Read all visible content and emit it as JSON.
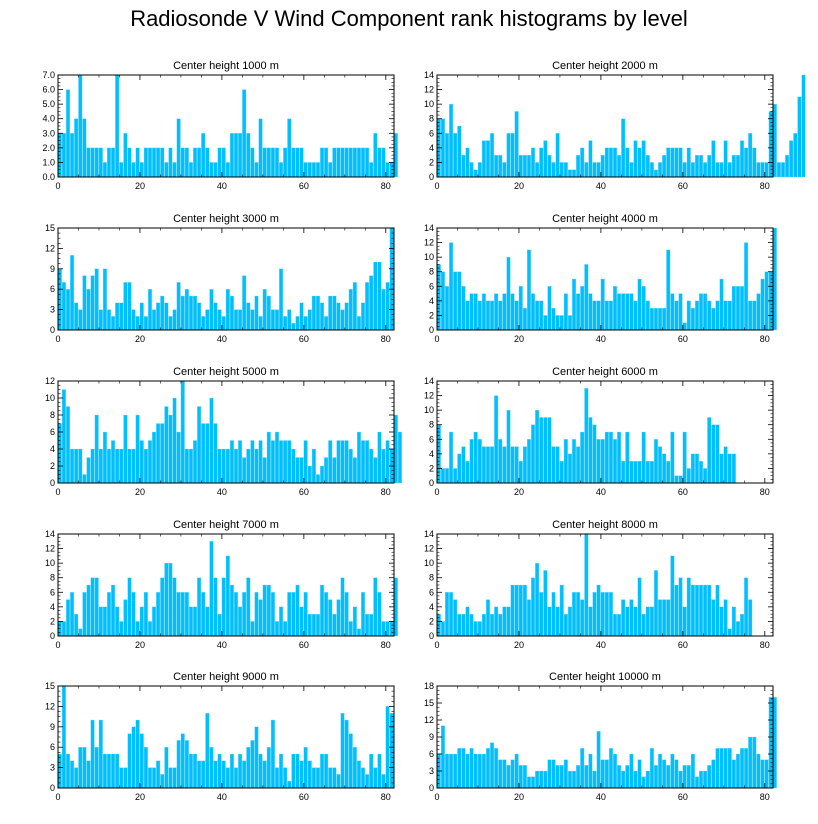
{
  "title": "Radiosonde V Wind Component rank histograms by level",
  "colors": {
    "bar": "#00bfff",
    "axis": "#000000"
  },
  "chart_data": [
    {
      "type": "bar",
      "title": "Center height 1000 m",
      "xlim": [
        0,
        82
      ],
      "ylim": [
        0,
        7
      ],
      "yticks": [
        "0.0",
        "1.0",
        "2.0",
        "3.0",
        "4.0",
        "5.0",
        "6.0",
        "7.0"
      ],
      "ytick_values": [
        0,
        1,
        2,
        3,
        4,
        5,
        6,
        7
      ],
      "xticks": [
        "0",
        "20",
        "40",
        "60",
        "80"
      ],
      "xtick_values": [
        0,
        20,
        40,
        60,
        80
      ],
      "values": [
        3,
        3,
        6,
        3,
        4,
        7,
        4,
        2,
        2,
        2,
        2,
        1,
        2,
        2,
        7,
        1,
        3,
        2,
        1,
        2,
        1,
        2,
        2,
        2,
        2,
        2,
        1,
        2,
        1,
        4,
        2,
        2,
        1,
        2,
        2,
        3,
        2,
        1,
        1,
        2,
        2,
        1,
        3,
        3,
        3,
        6,
        3,
        2,
        1,
        4,
        2,
        2,
        2,
        2,
        1,
        2,
        4,
        2,
        2,
        2,
        1,
        1,
        1,
        1,
        2,
        2,
        1,
        2,
        2,
        2,
        2,
        2,
        2,
        2,
        2,
        2,
        1,
        3,
        2,
        2,
        1,
        1,
        3
      ]
    },
    {
      "type": "bar",
      "title": "Center height 2000 m",
      "xlim": [
        0,
        82
      ],
      "ylim": [
        0,
        14
      ],
      "yticks": [
        "0",
        "2",
        "4",
        "6",
        "8",
        "10",
        "12",
        "14"
      ],
      "ytick_values": [
        0,
        2,
        4,
        6,
        8,
        10,
        12,
        14
      ],
      "xticks": [
        "0",
        "20",
        "40",
        "60",
        "80"
      ],
      "xtick_values": [
        0,
        20,
        40,
        60,
        80
      ],
      "values": [
        8,
        8,
        6,
        10,
        6,
        7,
        3,
        4,
        2,
        1,
        2,
        5,
        5,
        6,
        3,
        3,
        2,
        6,
        6,
        9,
        3,
        3,
        3,
        4,
        2,
        4,
        5,
        3,
        2,
        6,
        2,
        2,
        1,
        1,
        3,
        4,
        2,
        5,
        2,
        2,
        3,
        4,
        4,
        4,
        3,
        8,
        4,
        2,
        5,
        4,
        5,
        3,
        2,
        1,
        2,
        3,
        4,
        4,
        4,
        4,
        2,
        4,
        2,
        3,
        3,
        2,
        3,
        5,
        2,
        2,
        5,
        2,
        3,
        3,
        5,
        4,
        6,
        4,
        2,
        2,
        2,
        9,
        10,
        2,
        2,
        3,
        5,
        6,
        11,
        14
      ]
    },
    {
      "type": "bar",
      "title": "Center height 3000 m",
      "xlim": [
        0,
        82
      ],
      "ylim": [
        0,
        15
      ],
      "yticks": [
        "0",
        "3",
        "6",
        "9",
        "12",
        "15"
      ],
      "ytick_values": [
        0,
        3,
        6,
        9,
        12,
        15
      ],
      "xticks": [
        "0",
        "20",
        "40",
        "60",
        "80"
      ],
      "xtick_values": [
        0,
        20,
        40,
        60,
        80
      ],
      "values": [
        9,
        7,
        6,
        11,
        4,
        3,
        8,
        6,
        8,
        9,
        3,
        9,
        3,
        2,
        4,
        4,
        7,
        7,
        3,
        2,
        4,
        2,
        6,
        3,
        4,
        5,
        4,
        2,
        3,
        7,
        5,
        6,
        5,
        5,
        4,
        2,
        3,
        6,
        4,
        3,
        2,
        6,
        5,
        3,
        3,
        8,
        4,
        3,
        5,
        2,
        6,
        5,
        3,
        3,
        9,
        2,
        3,
        1,
        2,
        4,
        2,
        3,
        5,
        5,
        4,
        2,
        5,
        5,
        4,
        3,
        4,
        6,
        7,
        2,
        4,
        7,
        8,
        10,
        10,
        6,
        7,
        15
      ]
    },
    {
      "type": "bar",
      "title": "Center height 4000 m",
      "xlim": [
        0,
        82
      ],
      "ylim": [
        0,
        14
      ],
      "yticks": [
        "0",
        "2",
        "4",
        "6",
        "8",
        "10",
        "12",
        "14"
      ],
      "ytick_values": [
        0,
        2,
        4,
        6,
        8,
        10,
        12,
        14
      ],
      "xticks": [
        "0",
        "20",
        "40",
        "60",
        "80"
      ],
      "xtick_values": [
        0,
        20,
        40,
        60,
        80
      ],
      "values": [
        9,
        8,
        6,
        12,
        8,
        8,
        6,
        4,
        5,
        5,
        4,
        5,
        4,
        4,
        5,
        4,
        5,
        10,
        5,
        4,
        6,
        3,
        11,
        5,
        4,
        4,
        2,
        6,
        3,
        2,
        2,
        5,
        2,
        7,
        5,
        6,
        9,
        5,
        4,
        4,
        7,
        4,
        4,
        6,
        5,
        5,
        5,
        5,
        4,
        7,
        6,
        4,
        3,
        3,
        3,
        3,
        11,
        5,
        4,
        5,
        1,
        4,
        3,
        4,
        5,
        5,
        4,
        3,
        4,
        7,
        4,
        4,
        6,
        6,
        6,
        12,
        4,
        4,
        5,
        7,
        8,
        8,
        14
      ]
    },
    {
      "type": "bar",
      "title": "Center height 5000 m",
      "xlim": [
        0,
        82
      ],
      "ylim": [
        0,
        12
      ],
      "yticks": [
        "0",
        "2",
        "4",
        "6",
        "8",
        "10",
        "12"
      ],
      "ytick_values": [
        0,
        2,
        4,
        6,
        8,
        10,
        12
      ],
      "xticks": [
        "0",
        "20",
        "40",
        "60",
        "80"
      ],
      "xtick_values": [
        0,
        20,
        40,
        60,
        80
      ],
      "values": [
        7,
        11,
        9,
        4,
        4,
        4,
        1,
        3,
        4,
        8,
        4,
        6,
        4,
        5,
        4,
        4,
        8,
        4,
        4,
        8,
        5,
        4,
        5,
        6,
        7,
        7,
        9,
        8,
        10,
        6,
        12,
        4,
        4,
        5,
        9,
        7,
        7,
        10,
        7,
        4,
        4,
        4,
        5,
        4,
        5,
        3,
        4,
        5,
        4,
        5,
        3,
        6,
        5,
        6,
        5,
        5,
        5,
        4,
        3,
        3,
        5,
        2,
        4,
        1,
        2,
        3,
        5,
        3,
        5,
        5,
        5,
        4,
        3,
        6,
        5,
        5,
        4,
        3,
        6,
        4,
        5,
        4,
        8,
        6
      ]
    },
    {
      "type": "bar",
      "title": "Center height 6000 m",
      "xlim": [
        0,
        82
      ],
      "ylim": [
        0,
        14
      ],
      "yticks": [
        "0",
        "2",
        "4",
        "6",
        "8",
        "10",
        "12",
        "14"
      ],
      "ytick_values": [
        0,
        2,
        4,
        6,
        8,
        10,
        12,
        14
      ],
      "xticks": [
        "0",
        "20",
        "40",
        "60",
        "80"
      ],
      "xtick_values": [
        0,
        20,
        40,
        60,
        80
      ],
      "values": [
        8,
        2,
        2,
        7,
        2,
        4,
        5,
        3,
        6,
        7,
        6,
        5,
        5,
        5,
        12,
        6,
        5,
        10,
        5,
        5,
        3,
        5,
        6,
        8,
        10,
        9,
        9,
        9,
        5,
        5,
        3,
        6,
        4,
        6,
        5,
        7,
        13,
        9,
        8,
        6,
        6,
        7,
        7,
        6,
        7,
        3,
        7,
        3,
        3,
        3,
        7,
        3,
        3,
        6,
        5,
        4,
        3,
        7,
        1,
        1,
        7,
        2,
        4,
        4,
        3,
        2,
        9,
        8,
        8,
        4,
        5,
        4,
        4
      ]
    },
    {
      "type": "bar",
      "title": "Center height 7000 m",
      "xlim": [
        0,
        82
      ],
      "ylim": [
        0,
        14
      ],
      "yticks": [
        "0",
        "2",
        "4",
        "6",
        "8",
        "10",
        "12",
        "14"
      ],
      "ytick_values": [
        0,
        2,
        4,
        6,
        8,
        10,
        12,
        14
      ],
      "xticks": [
        "0",
        "20",
        "40",
        "60",
        "80"
      ],
      "xtick_values": [
        0,
        20,
        40,
        60,
        80
      ],
      "values": [
        2,
        2,
        5,
        6,
        3,
        1,
        6,
        7,
        8,
        8,
        4,
        4,
        6,
        7,
        4,
        2,
        5,
        8,
        6,
        2,
        4,
        6,
        2,
        4,
        6,
        8,
        10,
        10,
        8,
        6,
        6,
        6,
        4,
        4,
        8,
        6,
        4,
        13,
        8,
        3,
        8,
        11,
        7,
        6,
        4,
        6,
        8,
        2,
        6,
        5,
        7,
        7,
        6,
        2,
        4,
        2,
        6,
        6,
        7,
        4,
        6,
        3,
        3,
        3,
        7,
        6,
        5,
        3,
        5,
        8,
        6,
        2,
        4,
        1,
        6,
        3,
        3,
        8,
        6,
        2,
        2,
        2,
        8
      ]
    },
    {
      "type": "bar",
      "title": "Center height 8000 m",
      "xlim": [
        0,
        82
      ],
      "ylim": [
        0,
        14
      ],
      "yticks": [
        "0",
        "2",
        "4",
        "6",
        "8",
        "10",
        "12",
        "14"
      ],
      "ytick_values": [
        0,
        2,
        4,
        6,
        8,
        10,
        12,
        14
      ],
      "xticks": [
        "0",
        "20",
        "40",
        "60",
        "80"
      ],
      "xtick_values": [
        0,
        20,
        40,
        60,
        80
      ],
      "values": [
        3,
        2,
        6,
        6,
        5,
        3,
        3,
        4,
        3,
        2,
        2,
        3,
        5,
        3,
        4,
        3,
        4,
        4,
        7,
        7,
        7,
        7,
        5,
        8,
        10,
        6,
        9,
        4,
        6,
        4,
        7,
        3,
        4,
        6,
        6,
        5,
        14,
        4,
        6,
        7,
        6,
        6,
        6,
        3,
        3,
        5,
        4,
        5,
        4,
        8,
        3,
        4,
        4,
        9,
        5,
        5,
        5,
        11,
        7,
        8,
        4,
        8,
        7,
        7,
        7,
        7,
        7,
        5,
        7,
        4,
        5,
        1,
        4,
        2,
        3,
        8,
        5
      ]
    },
    {
      "type": "bar",
      "title": "Center height 9000 m",
      "xlim": [
        0,
        82
      ],
      "ylim": [
        0,
        15
      ],
      "yticks": [
        "0",
        "3",
        "6",
        "9",
        "12",
        "15"
      ],
      "ytick_values": [
        0,
        3,
        6,
        9,
        12,
        15
      ],
      "xticks": [
        "0",
        "20",
        "40",
        "60",
        "80"
      ],
      "xtick_values": [
        0,
        20,
        40,
        60,
        80
      ],
      "values": [
        5,
        15,
        5,
        4,
        3,
        6,
        6,
        4,
        10,
        6,
        10,
        5,
        5,
        5,
        5,
        3,
        3,
        8,
        9,
        10,
        8,
        6,
        3,
        3,
        4,
        2,
        6,
        3,
        3,
        7,
        8,
        7,
        5,
        5,
        4,
        4,
        11,
        6,
        4,
        5,
        4,
        3,
        5,
        3,
        5,
        4,
        6,
        7,
        9,
        5,
        4,
        6,
        10,
        3,
        5,
        3,
        1,
        5,
        5,
        4,
        6,
        4,
        3,
        3,
        5,
        5,
        3,
        3,
        2,
        11,
        10,
        8,
        6,
        4,
        3,
        2,
        5,
        3,
        5,
        2,
        12,
        11
      ]
    },
    {
      "type": "bar",
      "title": "Center height 10000 m",
      "xlim": [
        0,
        82
      ],
      "ylim": [
        0,
        18
      ],
      "yticks": [
        "0",
        "3",
        "6",
        "9",
        "12",
        "15",
        "18"
      ],
      "ytick_values": [
        0,
        3,
        6,
        9,
        12,
        15,
        18
      ],
      "xticks": [
        "0",
        "20",
        "40",
        "60",
        "80"
      ],
      "xtick_values": [
        0,
        20,
        40,
        60,
        80
      ],
      "values": [
        6,
        11,
        6,
        6,
        6,
        7,
        7,
        6,
        7,
        6,
        6,
        6,
        7,
        8,
        7,
        5,
        5,
        4,
        5,
        6,
        4,
        4,
        2,
        2,
        3,
        3,
        3,
        5,
        5,
        4,
        4,
        5,
        3,
        3,
        4,
        7,
        4,
        6,
        3,
        10,
        5,
        5,
        7,
        6,
        4,
        3,
        4,
        6,
        3,
        5,
        2,
        3,
        7,
        4,
        6,
        5,
        4,
        6,
        5,
        3,
        4,
        4,
        6,
        2,
        3,
        3,
        4,
        5,
        7,
        7,
        7,
        7,
        5,
        6,
        7,
        7,
        9,
        9,
        6,
        5,
        5,
        16,
        16
      ]
    }
  ]
}
